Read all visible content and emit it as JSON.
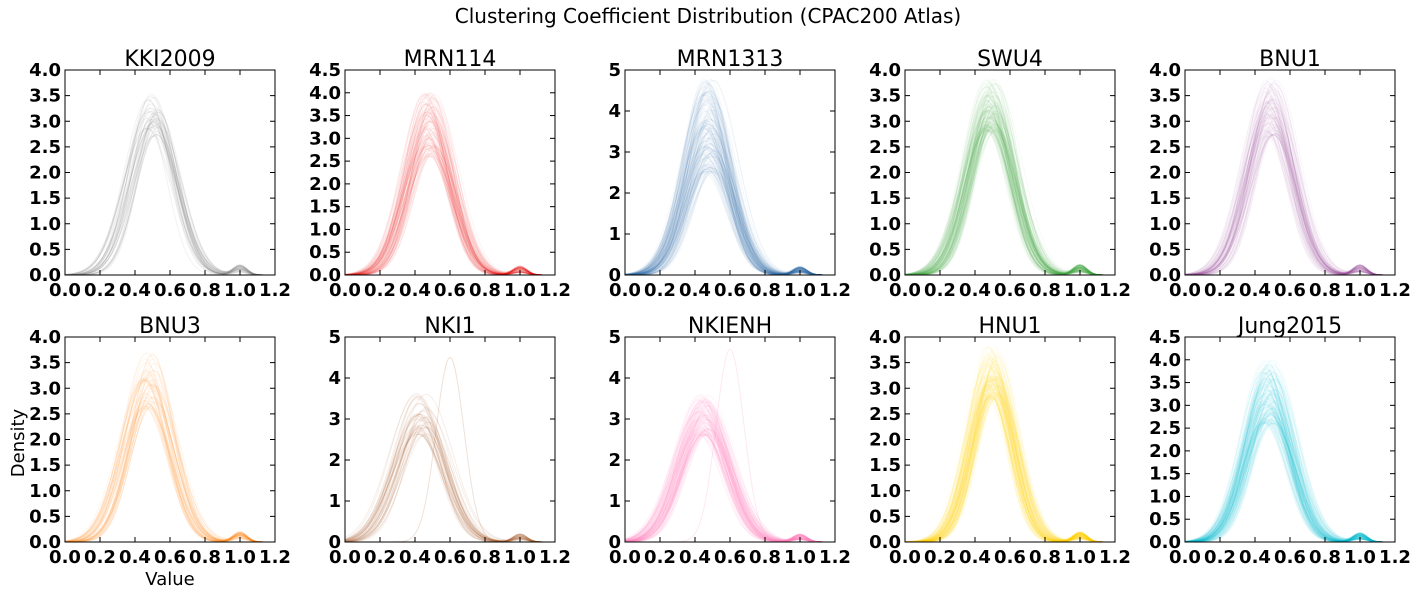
{
  "figure": {
    "title": "Clustering Coefficient Distribution (CPAC200 Atlas)",
    "xlabel": "Value",
    "ylabel": "Density"
  },
  "chart_data": [
    {
      "type": "line",
      "title": "KKI2009",
      "color": "#7f7f7f",
      "xlim": [
        0,
        1.2
      ],
      "ylim": [
        0,
        4.0
      ],
      "xticks": [
        "0.0",
        "0.2",
        "0.4",
        "0.6",
        "0.8",
        "1.0",
        "1.2"
      ],
      "yticks": [
        "0.0",
        "0.5",
        "1.0",
        "1.5",
        "2.0",
        "2.5",
        "3.0",
        "3.5",
        "4.0"
      ],
      "curves": {
        "count": 40,
        "peak_x": 0.5,
        "peak_y_range": [
          2.7,
          3.55
        ],
        "sd": 0.13,
        "tail_bump_x": 1.0
      },
      "grid": false,
      "legend": "none"
    },
    {
      "type": "line",
      "title": "MRN114",
      "color": "#e41a1c",
      "xlim": [
        0,
        1.2
      ],
      "ylim": [
        0,
        4.5
      ],
      "xticks": [
        "0.0",
        "0.2",
        "0.4",
        "0.6",
        "0.8",
        "1.0",
        "1.2"
      ],
      "yticks": [
        "0.0",
        "0.5",
        "1.0",
        "1.5",
        "2.0",
        "2.5",
        "3.0",
        "3.5",
        "4.0",
        "4.5"
      ],
      "curves": {
        "count": 100,
        "peak_x": 0.48,
        "peak_y_range": [
          2.6,
          4.0
        ],
        "sd": 0.13,
        "tail_bump_x": 1.0
      },
      "grid": false,
      "legend": "none"
    },
    {
      "type": "line",
      "title": "MRN1313",
      "color": "#377eb8",
      "xlim": [
        0,
        1.2
      ],
      "ylim": [
        0,
        5
      ],
      "xticks": [
        "0.0",
        "0.2",
        "0.4",
        "0.6",
        "0.8",
        "1.0",
        "1.2"
      ],
      "yticks": [
        "0",
        "1",
        "2",
        "3",
        "4",
        "5"
      ],
      "curves": {
        "count": 1300,
        "peak_x": 0.48,
        "peak_y_range": [
          2.5,
          4.8
        ],
        "sd": 0.13,
        "tail_bump_x": 1.0
      },
      "grid": false,
      "legend": "none"
    },
    {
      "type": "line",
      "title": "SWU4",
      "color": "#4daf4a",
      "xlim": [
        0,
        1.2
      ],
      "ylim": [
        0,
        4.0
      ],
      "xticks": [
        "0.0",
        "0.2",
        "0.4",
        "0.6",
        "0.8",
        "1.0",
        "1.2"
      ],
      "yticks": [
        "0.0",
        "0.5",
        "1.0",
        "1.5",
        "2.0",
        "2.5",
        "3.0",
        "3.5",
        "4.0"
      ],
      "curves": {
        "count": 400,
        "peak_x": 0.49,
        "peak_y_range": [
          2.8,
          3.85
        ],
        "sd": 0.13,
        "tail_bump_x": 1.0
      },
      "grid": false,
      "legend": "none"
    },
    {
      "type": "line",
      "title": "BNU1",
      "color": "#984ea3",
      "xlim": [
        0,
        1.2
      ],
      "ylim": [
        0,
        4.0
      ],
      "xticks": [
        "0.0",
        "0.2",
        "0.4",
        "0.6",
        "0.8",
        "1.0",
        "1.2"
      ],
      "yticks": [
        "0.0",
        "0.5",
        "1.0",
        "1.5",
        "2.0",
        "2.5",
        "3.0",
        "3.5",
        "4.0"
      ],
      "curves": {
        "count": 100,
        "peak_x": 0.49,
        "peak_y_range": [
          2.7,
          3.85
        ],
        "sd": 0.13,
        "tail_bump_x": 1.0
      },
      "grid": false,
      "legend": "none"
    },
    {
      "type": "line",
      "title": "BNU3",
      "color": "#ff7f00",
      "xlim": [
        0,
        1.2
      ],
      "ylim": [
        0,
        4.0
      ],
      "xticks": [
        "0.0",
        "0.2",
        "0.4",
        "0.6",
        "0.8",
        "1.0",
        "1.2"
      ],
      "yticks": [
        "0.0",
        "0.5",
        "1.0",
        "1.5",
        "2.0",
        "2.5",
        "3.0",
        "3.5",
        "4.0"
      ],
      "curves": {
        "count": 50,
        "peak_x": 0.48,
        "peak_y_range": [
          2.6,
          3.75
        ],
        "sd": 0.13,
        "tail_bump_x": 1.0
      },
      "grid": false,
      "legend": "none"
    },
    {
      "type": "line",
      "title": "NKI1",
      "color": "#a65628",
      "xlim": [
        0,
        1.2
      ],
      "ylim": [
        0,
        5
      ],
      "xticks": [
        "0.0",
        "0.2",
        "0.4",
        "0.6",
        "0.8",
        "1.0",
        "1.2"
      ],
      "yticks": [
        "0",
        "1",
        "2",
        "3",
        "4",
        "5"
      ],
      "curves": {
        "count": 40,
        "peak_x": 0.44,
        "peak_y_range": [
          2.6,
          3.7
        ],
        "sd": 0.14,
        "tail_bump_x": 1.0,
        "outlier_peak": [
          0.6,
          4.5
        ]
      },
      "grid": false,
      "legend": "none"
    },
    {
      "type": "line",
      "title": "NKIENH",
      "color": "#f781bf",
      "xlim": [
        0,
        1.2
      ],
      "ylim": [
        0,
        5
      ],
      "xticks": [
        "0.0",
        "0.2",
        "0.4",
        "0.6",
        "0.8",
        "1.0",
        "1.2"
      ],
      "yticks": [
        "0",
        "1",
        "2",
        "3",
        "4",
        "5"
      ],
      "curves": {
        "count": 200,
        "peak_x": 0.45,
        "peak_y_range": [
          2.6,
          3.6
        ],
        "sd": 0.14,
        "tail_bump_x": 1.0,
        "outlier_peak": [
          0.6,
          4.7
        ]
      },
      "grid": false,
      "legend": "none"
    },
    {
      "type": "line",
      "title": "HNU1",
      "color": "#ffd700",
      "xlim": [
        0,
        1.2
      ],
      "ylim": [
        0,
        4.0
      ],
      "xticks": [
        "0.0",
        "0.2",
        "0.4",
        "0.6",
        "0.8",
        "1.0",
        "1.2"
      ],
      "yticks": [
        "0.0",
        "0.5",
        "1.0",
        "1.5",
        "2.0",
        "2.5",
        "3.0",
        "3.5",
        "4.0"
      ],
      "curves": {
        "count": 300,
        "peak_x": 0.5,
        "peak_y_range": [
          2.8,
          3.85
        ],
        "sd": 0.12,
        "tail_bump_x": 1.0
      },
      "grid": false,
      "legend": "none"
    },
    {
      "type": "line",
      "title": "Jung2015",
      "color": "#17becf",
      "xlim": [
        0,
        1.2
      ],
      "ylim": [
        0,
        4.5
      ],
      "xticks": [
        "0.0",
        "0.2",
        "0.4",
        "0.6",
        "0.8",
        "1.0",
        "1.2"
      ],
      "yticks": [
        "0.0",
        "0.5",
        "1.0",
        "1.5",
        "2.0",
        "2.5",
        "3.0",
        "3.5",
        "4.0",
        "4.5"
      ],
      "curves": {
        "count": 300,
        "peak_x": 0.48,
        "peak_y_range": [
          2.6,
          4.0
        ],
        "sd": 0.13,
        "tail_bump_x": 1.0
      },
      "grid": false,
      "legend": "none"
    }
  ]
}
